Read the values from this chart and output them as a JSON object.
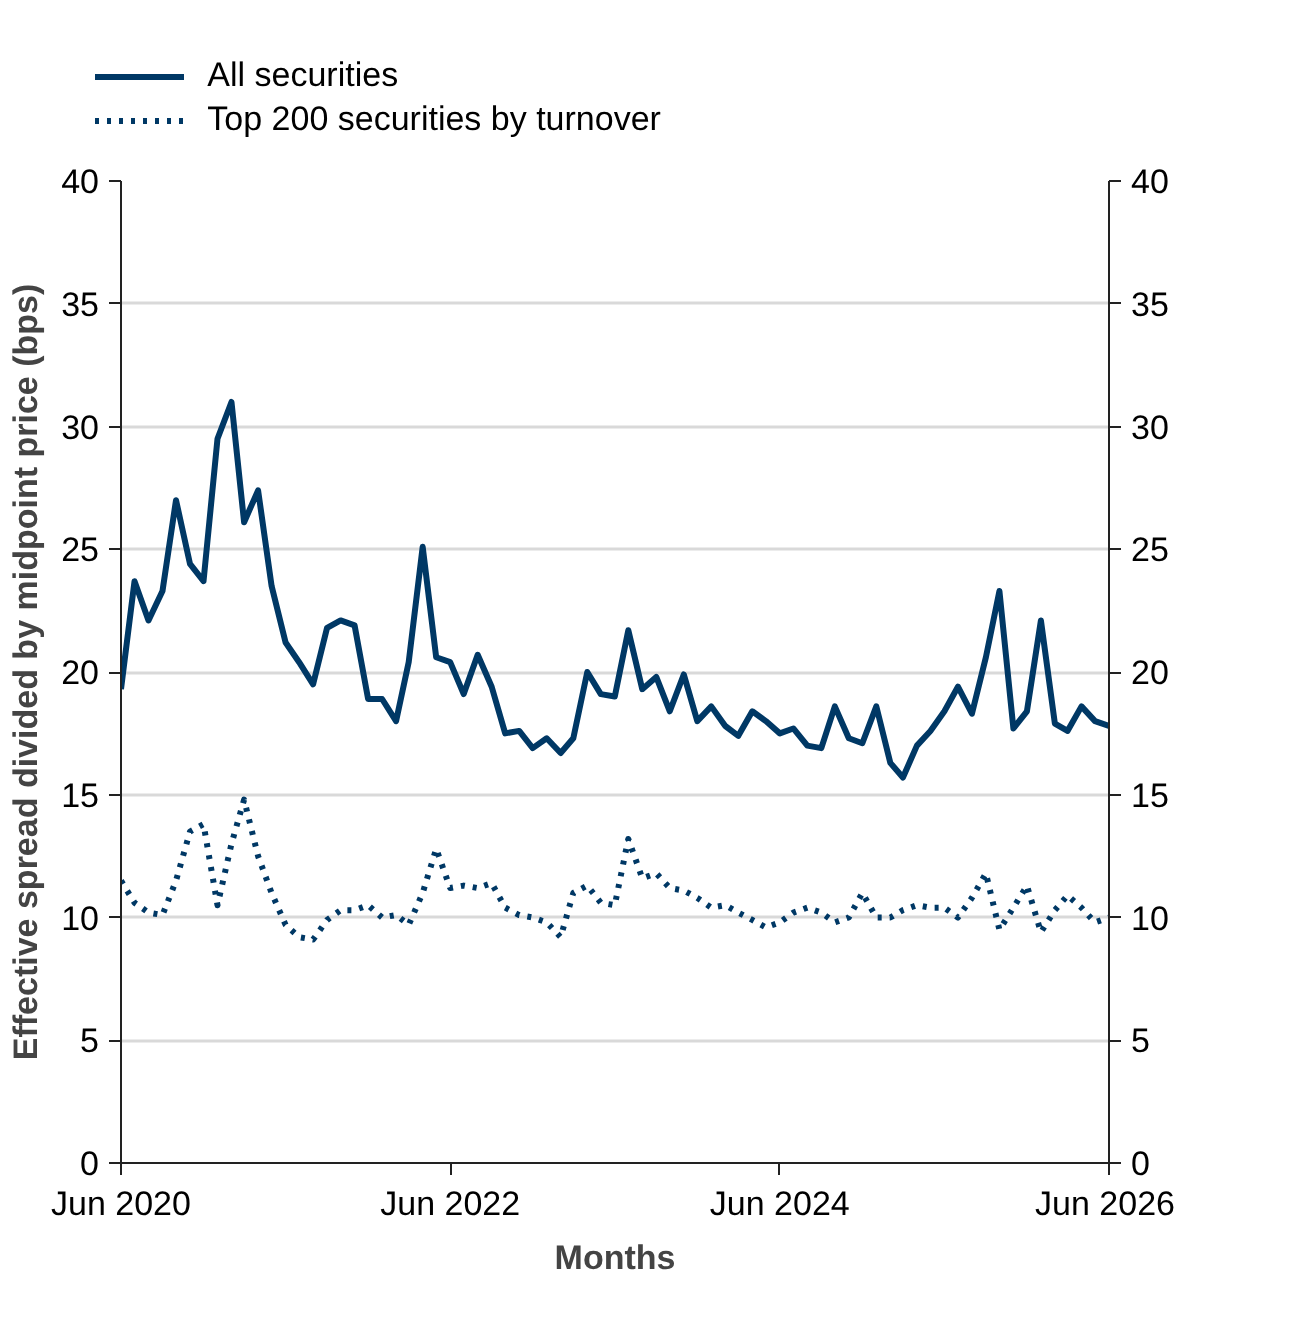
{
  "chart_data": {
    "type": "line",
    "xlabel": "Months",
    "ylabel": "Effective spread divided by midpoint price (bps)",
    "x": [
      "2020-06",
      "2020-07",
      "2020-08",
      "2020-09",
      "2020-10",
      "2020-11",
      "2020-12",
      "2021-01",
      "2021-02",
      "2021-03",
      "2021-04",
      "2021-05",
      "2021-06",
      "2021-07",
      "2021-08",
      "2021-09",
      "2021-10",
      "2021-11",
      "2021-12",
      "2022-01",
      "2022-02",
      "2022-03",
      "2022-04",
      "2022-05",
      "2022-06",
      "2022-07",
      "2022-08",
      "2022-09",
      "2022-10",
      "2022-11",
      "2022-12",
      "2023-01",
      "2023-02",
      "2023-03",
      "2023-04",
      "2023-05",
      "2023-06",
      "2023-07",
      "2023-08",
      "2023-09",
      "2023-10",
      "2023-11",
      "2023-12",
      "2024-01",
      "2024-02",
      "2024-03",
      "2024-04",
      "2024-05",
      "2024-06",
      "2024-07",
      "2024-08",
      "2024-09",
      "2024-10",
      "2024-11",
      "2024-12",
      "2025-01",
      "2025-02",
      "2025-03",
      "2025-04",
      "2025-05",
      "2025-06",
      "2025-07",
      "2025-08",
      "2025-09",
      "2025-10",
      "2025-11",
      "2025-12",
      "2026-01",
      "2026-02",
      "2026-03",
      "2026-04",
      "2026-05",
      "2026-06"
    ],
    "series": [
      {
        "name": "All securities",
        "color": "#003865",
        "line_style": "solid",
        "values": [
          19.3,
          23.7,
          22.1,
          23.3,
          27.0,
          24.4,
          23.7,
          29.5,
          31.0,
          26.1,
          27.4,
          23.5,
          21.2,
          20.4,
          19.5,
          21.8,
          22.1,
          21.9,
          18.9,
          18.9,
          18.0,
          20.4,
          25.1,
          20.6,
          20.4,
          19.1,
          20.7,
          19.4,
          17.5,
          17.6,
          16.9,
          17.3,
          16.7,
          17.3,
          20.0,
          19.1,
          19.0,
          21.7,
          19.3,
          19.8,
          18.4,
          19.9,
          18.0,
          18.6,
          17.8,
          17.4,
          18.4,
          18.0,
          17.5,
          17.7,
          17.0,
          16.9,
          18.6,
          17.3,
          17.1,
          18.6,
          16.3,
          15.7,
          17.0,
          17.6,
          18.4,
          19.4,
          18.3,
          20.6,
          23.3,
          17.7,
          18.4,
          22.1,
          17.9,
          17.6,
          18.6,
          18.0,
          17.8
        ]
      },
      {
        "name": "Top 200 securities by turnover",
        "color": "#003865",
        "line_style": "dotted",
        "values": [
          11.5,
          10.6,
          10.2,
          10.1,
          11.5,
          13.5,
          13.8,
          10.5,
          13.0,
          14.8,
          12.5,
          11.0,
          9.7,
          9.2,
          9.1,
          9.9,
          10.3,
          10.3,
          10.5,
          10.0,
          10.1,
          9.7,
          11.0,
          12.8,
          11.2,
          11.3,
          11.2,
          11.4,
          10.4,
          10.1,
          10.0,
          9.8,
          9.2,
          11.0,
          11.3,
          10.6,
          10.5,
          13.2,
          11.6,
          11.8,
          11.2,
          11.1,
          10.8,
          10.4,
          10.5,
          10.2,
          9.9,
          9.6,
          9.8,
          10.2,
          10.4,
          10.2,
          9.8,
          10.0,
          11.0,
          10.0,
          10.0,
          10.3,
          10.5,
          10.4,
          10.4,
          10.0,
          10.8,
          11.8,
          9.5,
          10.4,
          11.3,
          9.4,
          10.3,
          10.9,
          10.4,
          9.8,
          10.0
        ]
      }
    ],
    "xlim": [
      "2020-06",
      "2026-06"
    ],
    "xticks": [
      {
        "value": "2020-06",
        "label": "Jun 2020"
      },
      {
        "value": "2022-06",
        "label": "Jun 2022"
      },
      {
        "value": "2024-06",
        "label": "Jun 2024"
      },
      {
        "value": "2026-06",
        "label": "Jun 2026"
      }
    ],
    "ylim": [
      0,
      40
    ],
    "yticks": [
      0,
      5,
      10,
      15,
      20,
      25,
      30,
      35,
      40
    ],
    "y2lim": [
      0,
      40
    ],
    "y2ticks": [
      0,
      5,
      10,
      15,
      20,
      25,
      30,
      35,
      40
    ],
    "grid": "y",
    "legend": "top left",
    "marker": "none"
  }
}
